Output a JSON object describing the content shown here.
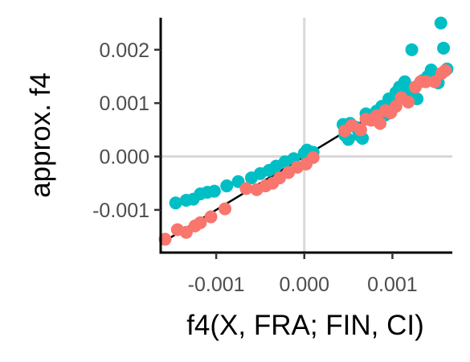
{
  "chart_data": {
    "type": "scatter",
    "xlabel": "f4(X, FRA; FIN, CI)",
    "ylabel": "approx. f4",
    "xlim": [
      -0.00163,
      0.00168
    ],
    "ylim": [
      -0.0018,
      0.0026
    ],
    "x_ticks": [
      -0.001,
      0.0,
      0.001
    ],
    "x_tick_labels": [
      "-0.001",
      "0.000",
      "0.001"
    ],
    "y_ticks": [
      -0.001,
      0.0,
      0.001,
      0.002
    ],
    "y_tick_labels": [
      "-0.001",
      "0.000",
      "0.001",
      "0.002"
    ],
    "grid": "zero lines only",
    "legend": "none",
    "reference_line": {
      "type": "identity",
      "slope": 1,
      "intercept": 0,
      "color": "#000000"
    },
    "series": [
      {
        "color": "#00BFC4",
        "points": [
          [
            -0.00146,
            -0.00087
          ],
          [
            -0.00134,
            -0.00082
          ],
          [
            -0.00126,
            -0.0008
          ],
          [
            -0.00118,
            -0.0007
          ],
          [
            -0.0011,
            -0.00067
          ],
          [
            -0.00102,
            -0.00065
          ],
          [
            -0.00088,
            -0.00055
          ],
          [
            -0.00075,
            -0.00047
          ],
          [
            -0.0006,
            -0.0004
          ],
          [
            -0.0005,
            -0.00032
          ],
          [
            -0.0004,
            -0.00026
          ],
          [
            -0.00032,
            -0.00018
          ],
          [
            -0.00022,
            -0.0001
          ],
          [
            -0.00012,
            -4e-05
          ],
          [
            0.0,
            6e-05
          ],
          [
            3e-05,
            0.00012
          ],
          [
            0.0001,
            8e-05
          ],
          [
            0.00044,
            0.0006
          ],
          [
            0.00046,
            0.0004
          ],
          [
            0.0005,
            0.00032
          ],
          [
            0.00052,
            0.00062
          ],
          [
            0.00058,
            0.00055
          ],
          [
            0.00062,
            0.0004
          ],
          [
            0.00066,
            0.00034
          ],
          [
            0.0007,
            0.0008
          ],
          [
            0.00078,
            0.00074
          ],
          [
            0.00082,
            0.00085
          ],
          [
            0.00088,
            0.00094
          ],
          [
            0.00092,
            0.00078
          ],
          [
            0.00096,
            0.00108
          ],
          [
            0.001,
            0.001
          ],
          [
            0.00104,
            0.0012
          ],
          [
            0.00108,
            0.0013
          ],
          [
            0.00114,
            0.0014
          ],
          [
            0.00118,
            0.00122
          ],
          [
            0.00122,
            0.002
          ],
          [
            0.00128,
            0.00108
          ],
          [
            0.00134,
            0.00142
          ],
          [
            0.0014,
            0.0015
          ],
          [
            0.00144,
            0.00162
          ],
          [
            0.00152,
            0.00138
          ],
          [
            0.00155,
            0.0025
          ],
          [
            0.00158,
            0.00203
          ],
          [
            0.00162,
            0.00164
          ]
        ]
      },
      {
        "color": "#F8766D",
        "points": [
          [
            -0.00158,
            -0.00155
          ],
          [
            -0.00144,
            -0.00137
          ],
          [
            -0.00134,
            -0.00142
          ],
          [
            -0.00124,
            -0.0013
          ],
          [
            -0.00118,
            -0.00124
          ],
          [
            -0.00106,
            -0.00113
          ],
          [
            -0.0009,
            -0.00098
          ],
          [
            -0.00066,
            -0.0006
          ],
          [
            -0.00054,
            -0.00062
          ],
          [
            -0.00044,
            -0.00055
          ],
          [
            -0.00036,
            -0.0005
          ],
          [
            -0.00028,
            -0.0004
          ],
          [
            -0.00018,
            -0.0003
          ],
          [
            -8e-05,
            -0.0002
          ],
          [
            2e-05,
            -0.00014
          ],
          [
            0.0001,
            -2e-05
          ],
          [
            0.00046,
            0.00048
          ],
          [
            0.00054,
            0.00058
          ],
          [
            0.00064,
            0.0005
          ],
          [
            0.0007,
            0.0007
          ],
          [
            0.00076,
            0.00068
          ],
          [
            0.00082,
            0.00076
          ],
          [
            0.00086,
            0.00062
          ],
          [
            0.00092,
            0.00086
          ],
          [
            0.00098,
            0.00082
          ],
          [
            0.00104,
            0.00094
          ],
          [
            0.0011,
            0.0011
          ],
          [
            0.00118,
            0.00102
          ],
          [
            0.00126,
            0.0013
          ],
          [
            0.00132,
            0.0014
          ],
          [
            0.00138,
            0.0014
          ],
          [
            0.00148,
            0.0014
          ],
          [
            0.00156,
            0.00156
          ],
          [
            0.0016,
            0.00161
          ]
        ]
      }
    ]
  }
}
